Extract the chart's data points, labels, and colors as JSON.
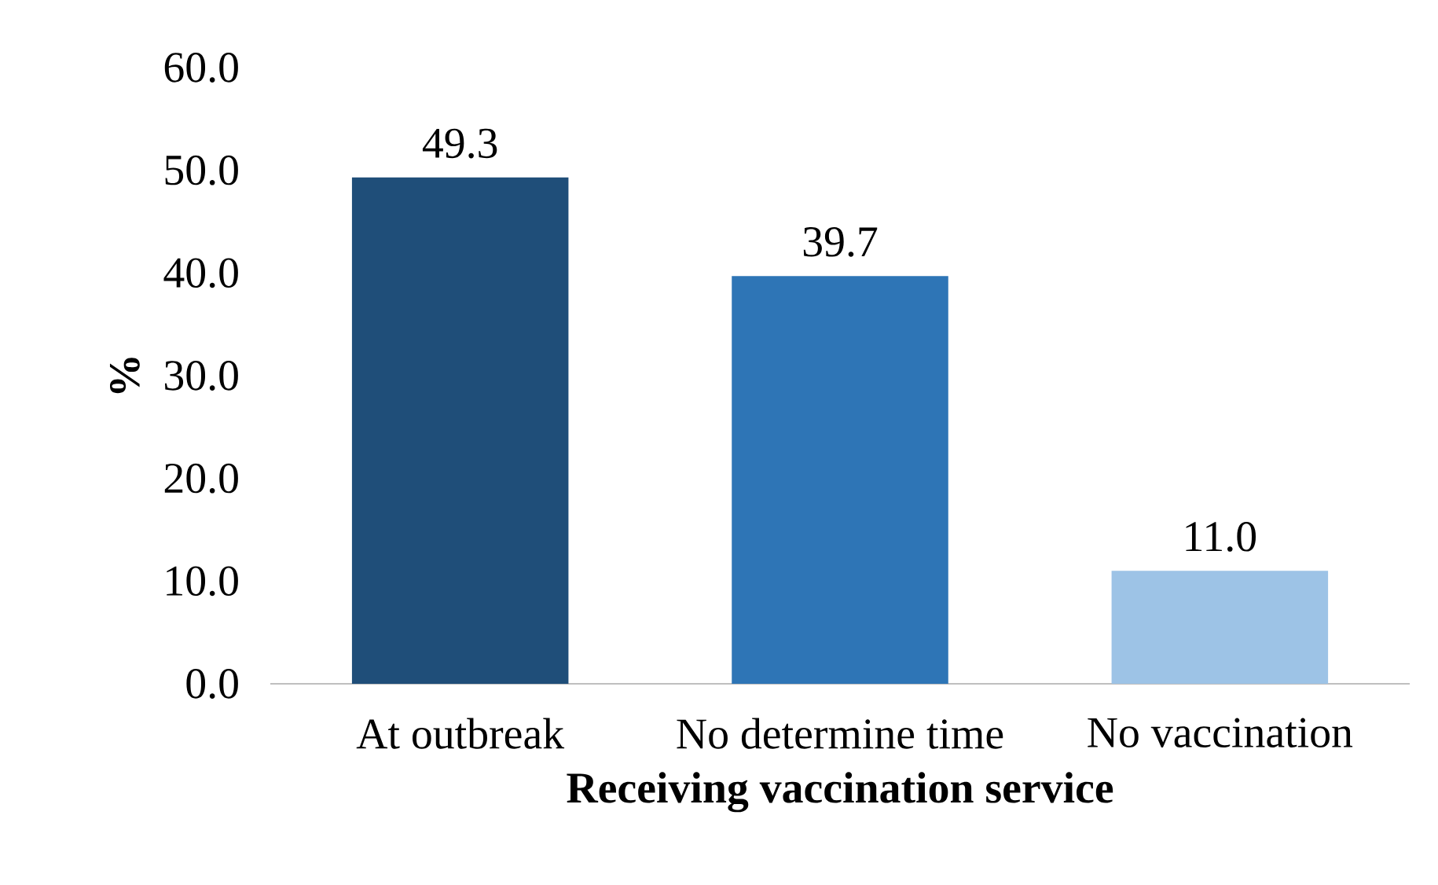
{
  "chart_data": {
    "type": "bar",
    "xlabel": "Receiving vaccination service",
    "ylabel": "%",
    "categories": [
      "At outbreak",
      "No determine time",
      "No vaccination"
    ],
    "values": [
      49.3,
      39.7,
      11.0
    ],
    "colors": [
      "#1f4e79",
      "#2e75b6",
      "#9dc3e6"
    ],
    "value_labels": [
      "49.3",
      "39.7",
      "11.0"
    ],
    "ylim": [
      0,
      60
    ],
    "yticks": [
      {
        "value": 0,
        "label": "0.0"
      },
      {
        "value": 10,
        "label": "10.0"
      },
      {
        "value": 20,
        "label": "20.0"
      },
      {
        "value": 30,
        "label": "30.0"
      },
      {
        "value": 40,
        "label": "40.0"
      },
      {
        "value": 50,
        "label": "50.0"
      },
      {
        "value": 60,
        "label": "60.0"
      }
    ]
  }
}
